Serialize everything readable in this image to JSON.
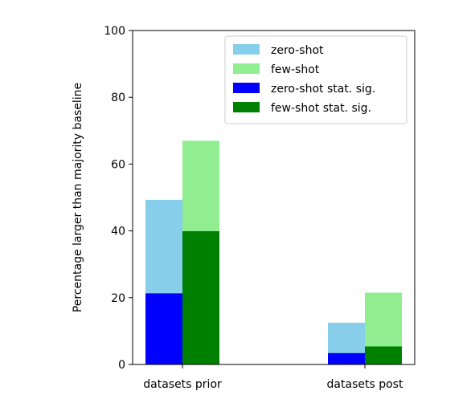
{
  "chart_data": {
    "type": "bar",
    "stacked_overlay": true,
    "categories": [
      "datasets prior",
      "datasets post"
    ],
    "ylabel": "Percentage larger than majority baseline",
    "xlabel": "",
    "title": "",
    "ylim": [
      0,
      100
    ],
    "yticks": [
      0,
      20,
      40,
      60,
      80,
      100
    ],
    "grid": false,
    "legend_position": "top-right",
    "series": [
      {
        "name": "zero-shot",
        "values": [
          49.3,
          12.5
        ],
        "color": "#87ceeb",
        "group": "zero"
      },
      {
        "name": "few-shot",
        "values": [
          67.0,
          21.5
        ],
        "color": "#90ee90",
        "group": "few"
      },
      {
        "name": "zero-shot stat. sig.",
        "values": [
          21.3,
          3.4
        ],
        "color": "#0000ff",
        "group": "zero"
      },
      {
        "name": "few-shot stat. sig.",
        "values": [
          39.9,
          5.4
        ],
        "color": "#008000",
        "group": "few"
      }
    ]
  }
}
